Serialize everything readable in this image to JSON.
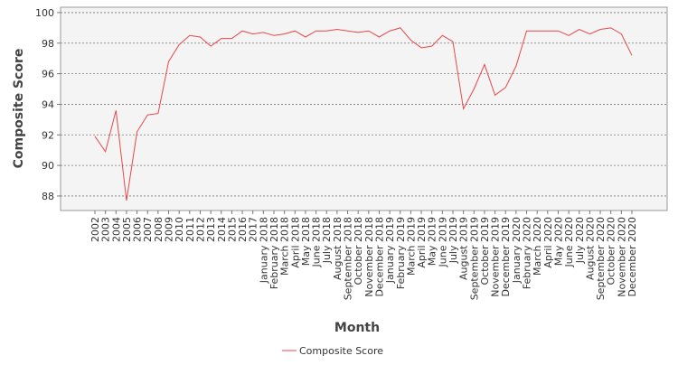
{
  "chart_data": {
    "type": "line",
    "x_label": "Month",
    "y_label": "Composite Score",
    "categories": [
      "2002",
      "2003",
      "2004",
      "2005",
      "2006",
      "2007",
      "2008",
      "2009",
      "2010",
      "2011",
      "2012",
      "2013",
      "2014",
      "2015",
      "2016",
      "2017",
      "January 2018",
      "February 2018",
      "March 2018",
      "April 2018",
      "May 2018",
      "June 2018",
      "July 2018",
      "August 2018",
      "September 2018",
      "October 2018",
      "November 2018",
      "December 2018",
      "January 2019",
      "February 2019",
      "March 2019",
      "April 2019",
      "May 2019",
      "June 2019",
      "July 2019",
      "August 2019",
      "September 2019",
      "October 2019",
      "November 2019",
      "December 2019",
      "January 2020",
      "February 2020",
      "March 2020",
      "April 2020",
      "May 2020",
      "June 2020",
      "July 2020",
      "August 2020",
      "September 2020",
      "October 2020",
      "November 2020",
      "December 2020"
    ],
    "series": [
      {
        "name": "Composite Score",
        "color": "#e8474a",
        "values": [
          91.9,
          90.9,
          93.6,
          87.7,
          92.2,
          93.3,
          93.4,
          96.8,
          97.9,
          98.5,
          98.4,
          97.8,
          98.3,
          98.3,
          98.8,
          98.6,
          98.7,
          98.5,
          98.6,
          98.8,
          98.4,
          98.8,
          98.8,
          98.9,
          98.8,
          98.7,
          98.8,
          98.4,
          98.8,
          99.0,
          98.2,
          97.7,
          97.8,
          98.5,
          98.1,
          93.7,
          95.0,
          96.6,
          94.6,
          95.1,
          96.5,
          98.8,
          98.8,
          98.8,
          98.8,
          98.5,
          98.9,
          98.6,
          98.9,
          99.0,
          98.6,
          97.2
        ]
      }
    ],
    "ylim": [
      87.05,
      100.35
    ],
    "yticks": [
      88,
      90,
      92,
      94,
      96,
      98,
      100
    ],
    "grid": true,
    "legend": "bottom"
  }
}
